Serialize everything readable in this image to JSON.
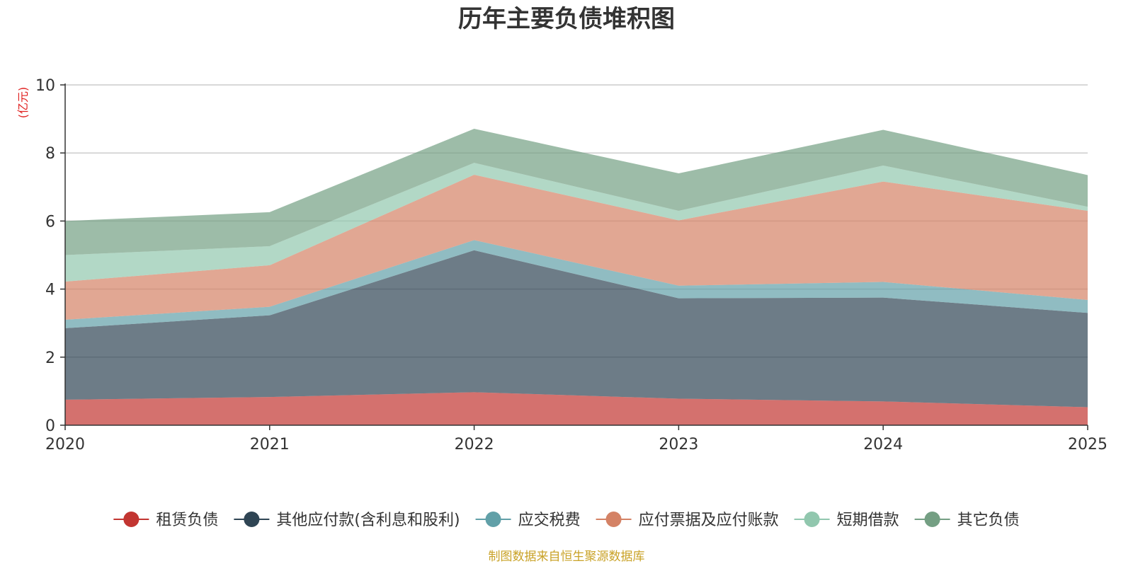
{
  "chart_data": {
    "type": "area",
    "stacked": true,
    "title": "历年主要负债堆积图",
    "ylabel": "(亿元)",
    "xlabel": "",
    "x": [
      "2020",
      "2021",
      "2022",
      "2023",
      "2024",
      "2025"
    ],
    "ylim": [
      0,
      10
    ],
    "yticks": [
      "0",
      "2",
      "4",
      "6",
      "8",
      "10"
    ],
    "grid": true,
    "legend_position": "bottom",
    "series": [
      {
        "name": "租赁负债",
        "color": "#c23531",
        "values": [
          0.75,
          0.83,
          0.97,
          0.78,
          0.7,
          0.53
        ]
      },
      {
        "name": "其他应付款(含利息和股利)",
        "color": "#2f4554",
        "values": [
          2.1,
          2.4,
          4.17,
          2.95,
          3.05,
          2.77
        ]
      },
      {
        "name": "应交税费",
        "color": "#61a0a8",
        "values": [
          0.25,
          0.25,
          0.3,
          0.37,
          0.46,
          0.38
        ]
      },
      {
        "name": "应付票据及应付账款",
        "color": "#d48265",
        "values": [
          1.12,
          1.22,
          1.92,
          1.92,
          2.95,
          2.62
        ]
      },
      {
        "name": "短期借款",
        "color": "#91c7ae",
        "values": [
          0.78,
          0.56,
          0.35,
          0.28,
          0.47,
          0.12
        ]
      },
      {
        "name": "其它负债",
        "color": "#749f83",
        "values": [
          1.0,
          1.0,
          1.0,
          1.1,
          1.05,
          0.93
        ]
      }
    ]
  },
  "source_text": "制图数据来自恒生聚源数据库",
  "colors": {
    "ylabel": "#e0201f",
    "source": "#c9a227",
    "grid": "#cccccc",
    "axis": "#333333"
  }
}
